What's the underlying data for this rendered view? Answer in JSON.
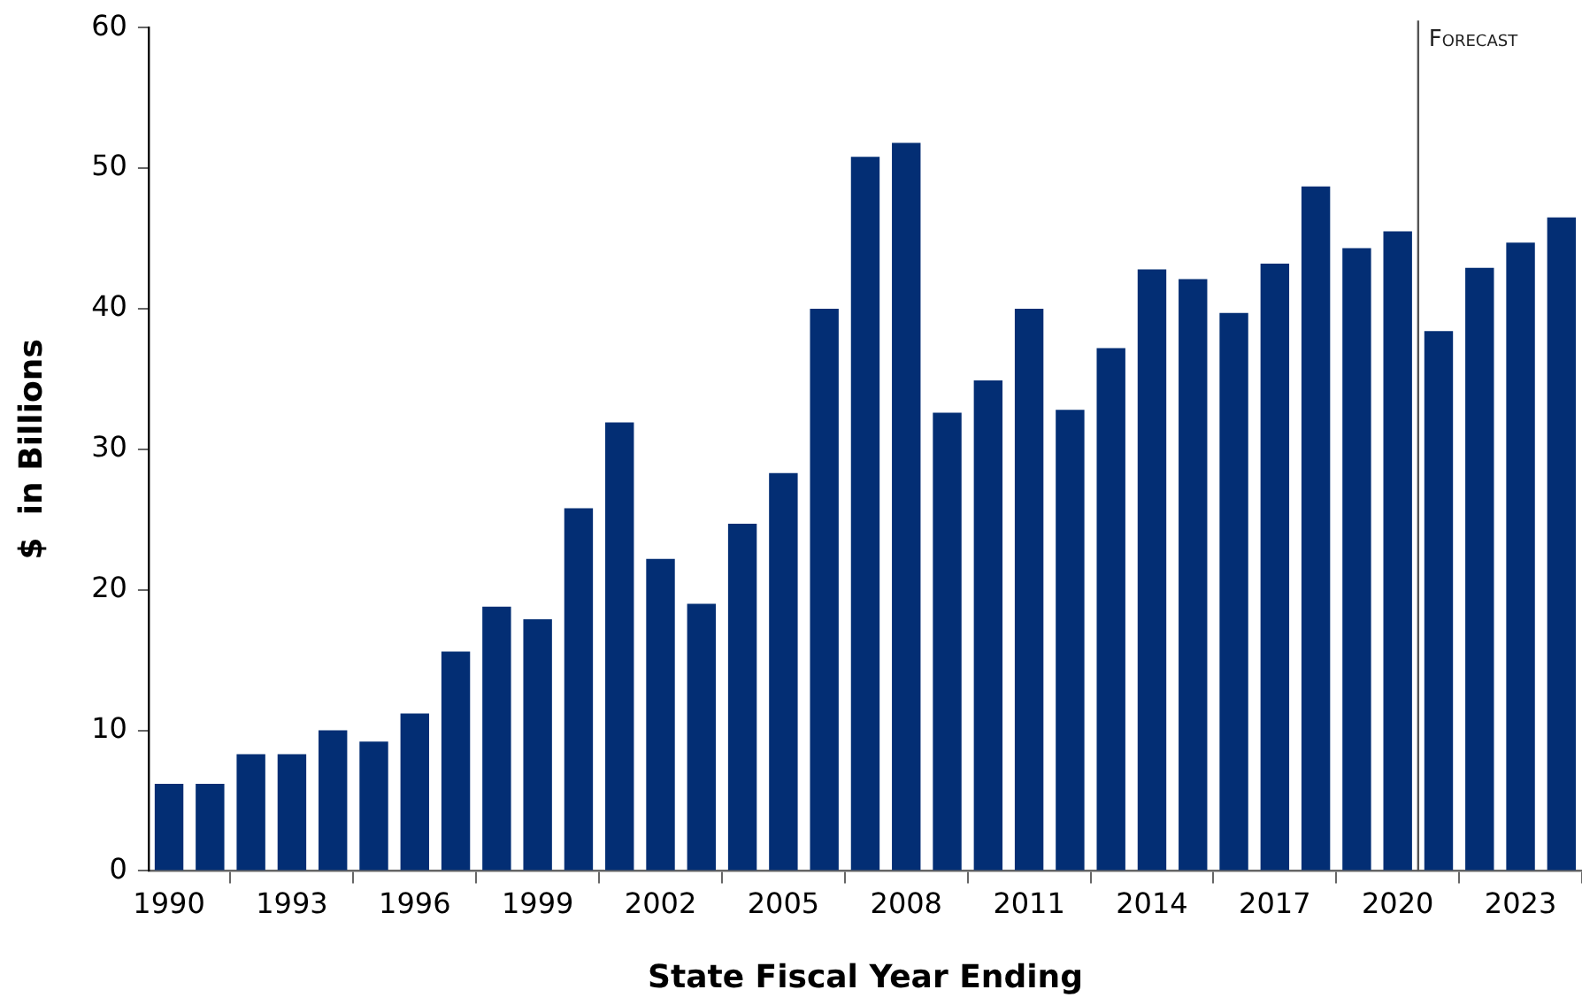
{
  "chart_data": {
    "type": "bar",
    "xlabel": "State Fiscal Year Ending",
    "ylabel": "$  in Billions",
    "x": [
      1990,
      1991,
      1992,
      1993,
      1994,
      1995,
      1996,
      1997,
      1998,
      1999,
      2000,
      2001,
      2002,
      2003,
      2004,
      2005,
      2006,
      2007,
      2008,
      2009,
      2010,
      2011,
      2012,
      2013,
      2014,
      2015,
      2016,
      2017,
      2018,
      2019,
      2020,
      2021,
      2022,
      2023,
      2024
    ],
    "series": [
      {
        "color": "#032e74",
        "values": [
          6.2,
          6.2,
          8.3,
          8.3,
          10.0,
          9.2,
          11.2,
          15.6,
          18.8,
          17.9,
          25.8,
          31.9,
          22.2,
          19.0,
          24.7,
          28.3,
          40.0,
          50.8,
          51.8,
          32.6,
          34.9,
          40.0,
          32.8,
          37.2,
          42.8,
          42.1,
          39.7,
          43.2,
          48.7,
          44.3,
          45.5,
          38.4,
          42.9,
          44.7,
          46.5
        ]
      }
    ],
    "xlim": [
      1989.5,
      2024.5
    ],
    "xticks": [
      1990,
      1993,
      1996,
      1999,
      2002,
      2005,
      2008,
      2011,
      2014,
      2017,
      2020,
      2023
    ],
    "ylim": [
      0,
      60
    ],
    "yticks": [
      0,
      10,
      20,
      30,
      40,
      50,
      60
    ],
    "ref_lines": [
      {
        "axis": "x",
        "value": 2020.5,
        "label": "Forecast",
        "color": "#555555"
      }
    ],
    "grid": false,
    "legend": false
  }
}
